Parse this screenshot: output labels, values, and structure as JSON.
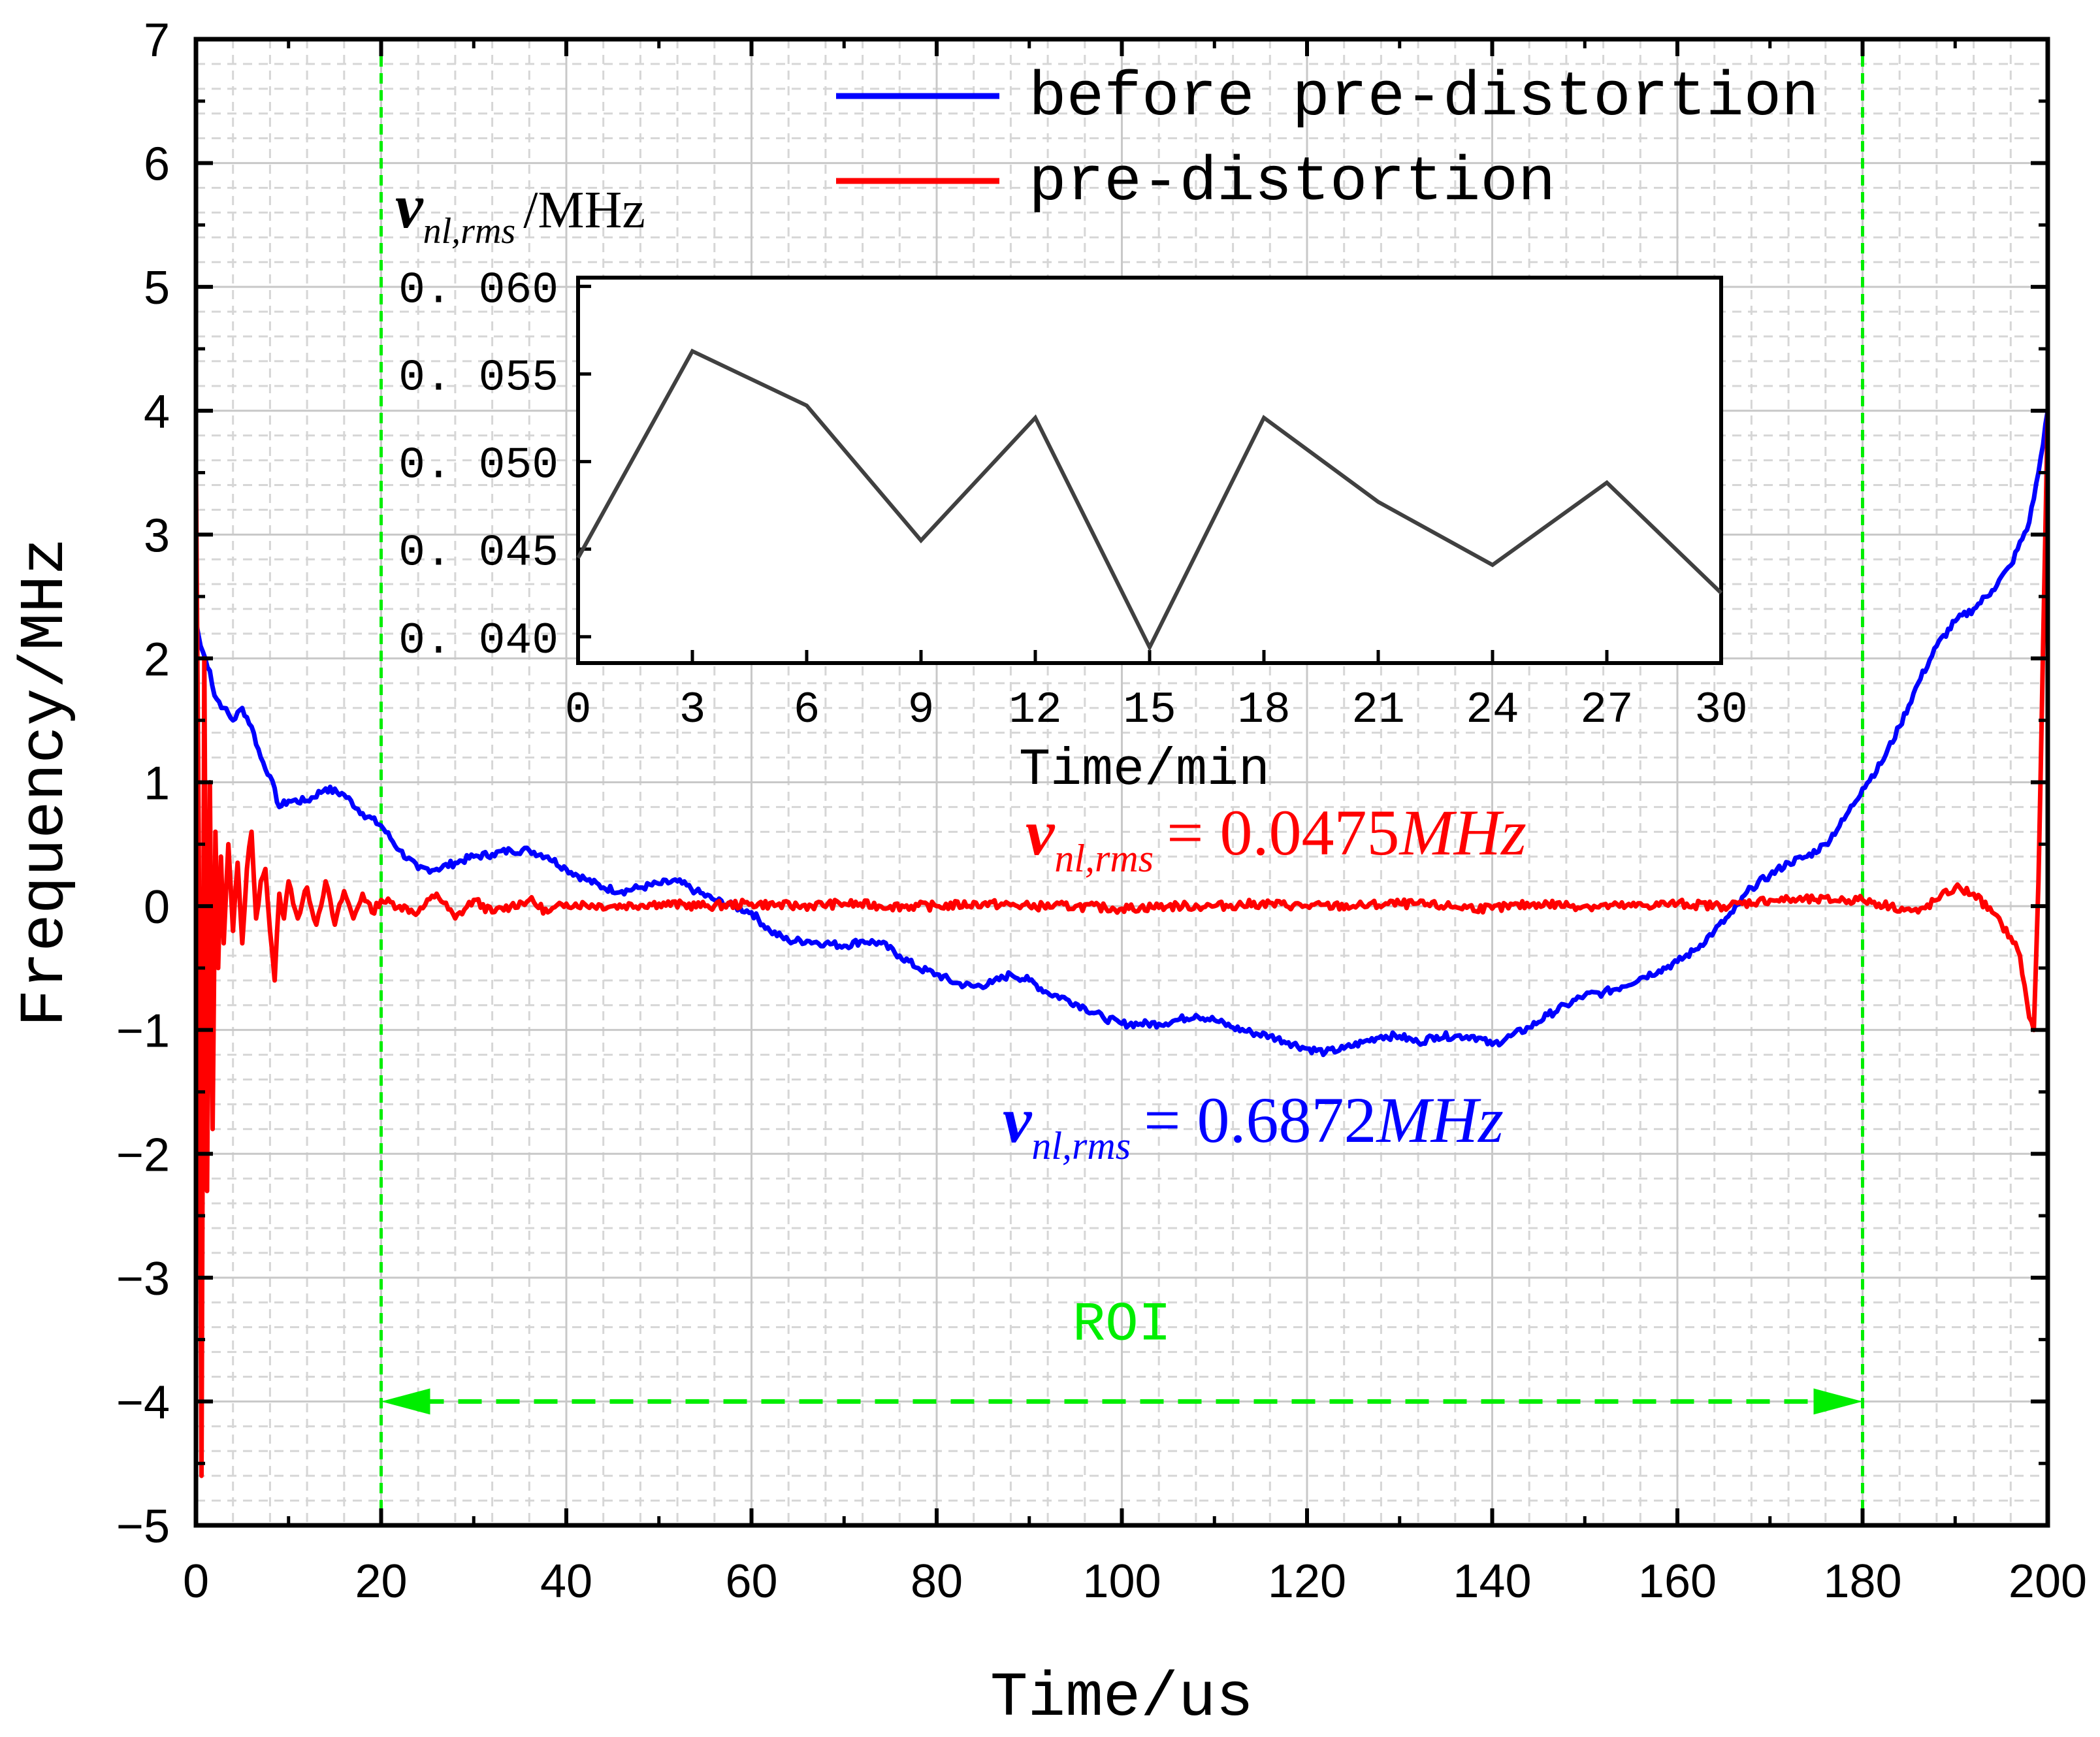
{
  "chart_data": [
    {
      "type": "line",
      "title": "",
      "xlabel": "Time/us",
      "ylabel": "Frequency/MHz",
      "xlim": [
        0,
        200
      ],
      "ylim": [
        -5,
        7
      ],
      "xticks": [
        "0",
        "20",
        "40",
        "60",
        "80",
        "100",
        "120",
        "140",
        "160",
        "180",
        "200"
      ],
      "yticks": [
        "−5",
        "−4",
        "−3",
        "−2",
        "−1",
        "0",
        "1",
        "2",
        "3",
        "4",
        "5",
        "6",
        "7"
      ],
      "grid": true,
      "legend_position": "top-right",
      "series": [
        {
          "name": "before pre-distortion",
          "color": "#0000ff",
          "x": [
            0,
            0.5,
            1,
            1.5,
            2,
            3,
            4,
            5,
            6,
            7,
            8,
            9,
            10,
            12,
            14,
            16,
            18,
            20,
            22,
            24,
            26,
            28,
            30,
            32,
            34,
            36,
            38,
            40,
            42,
            44,
            46,
            48,
            50,
            52,
            54,
            56,
            58,
            60,
            62,
            64,
            66,
            68,
            70,
            72,
            74,
            76,
            78,
            80,
            82,
            84,
            86,
            88,
            90,
            92,
            94,
            96,
            98,
            100,
            102,
            104,
            106,
            108,
            110,
            112,
            114,
            116,
            118,
            120,
            122,
            124,
            126,
            128,
            130,
            132,
            134,
            136,
            138,
            140,
            142,
            144,
            146,
            148,
            150,
            152,
            154,
            156,
            158,
            160,
            162,
            164,
            166,
            168,
            170,
            172,
            174,
            176,
            178,
            180,
            182,
            184,
            186,
            188,
            190,
            192,
            194,
            196,
            198,
            199,
            200
          ],
          "y": [
            2.3,
            2.1,
            2.0,
            1.9,
            1.7,
            1.6,
            1.5,
            1.6,
            1.45,
            1.2,
            1.05,
            0.8,
            0.85,
            0.85,
            0.95,
            0.9,
            0.75,
            0.65,
            0.45,
            0.3,
            0.3,
            0.35,
            0.4,
            0.42,
            0.45,
            0.45,
            0.4,
            0.3,
            0.22,
            0.15,
            0.12,
            0.15,
            0.18,
            0.2,
            0.12,
            0.05,
            0.0,
            -0.05,
            -0.2,
            -0.28,
            -0.28,
            -0.3,
            -0.32,
            -0.28,
            -0.3,
            -0.4,
            -0.5,
            -0.55,
            -0.62,
            -0.65,
            -0.62,
            -0.55,
            -0.6,
            -0.7,
            -0.75,
            -0.82,
            -0.9,
            -0.95,
            -0.95,
            -0.95,
            -0.92,
            -0.88,
            -0.92,
            -0.98,
            -1.02,
            -1.05,
            -1.1,
            -1.15,
            -1.18,
            -1.15,
            -1.1,
            -1.05,
            -1.05,
            -1.1,
            -1.05,
            -1.05,
            -1.05,
            -1.12,
            -1.05,
            -0.98,
            -0.88,
            -0.8,
            -0.72,
            -0.7,
            -0.65,
            -0.58,
            -0.52,
            -0.45,
            -0.35,
            -0.2,
            -0.05,
            0.15,
            0.25,
            0.35,
            0.4,
            0.5,
            0.7,
            0.95,
            1.15,
            1.45,
            1.8,
            2.1,
            2.3,
            2.4,
            2.55,
            2.75,
            3.1,
            3.5,
            4.0
          ]
        },
        {
          "name": "pre-distortion",
          "color": "#ff0000",
          "x": [
            0,
            0.3,
            0.6,
            0.9,
            1.2,
            1.5,
            1.8,
            2.1,
            2.4,
            2.7,
            3,
            3.5,
            4,
            4.5,
            5,
            5.5,
            6,
            6.5,
            7,
            7.5,
            8,
            8.5,
            9,
            9.5,
            10,
            11,
            12,
            13,
            14,
            15,
            16,
            17,
            18,
            19,
            20,
            22,
            24,
            26,
            28,
            30,
            32,
            34,
            36,
            38,
            40,
            45,
            50,
            55,
            60,
            65,
            70,
            75,
            80,
            85,
            90,
            95,
            100,
            105,
            110,
            115,
            120,
            125,
            130,
            135,
            140,
            145,
            150,
            155,
            160,
            165,
            170,
            175,
            180,
            183,
            186,
            188,
            190,
            192,
            194,
            196,
            197,
            198,
            198.5,
            199,
            200
          ],
          "y": [
            3.5,
            0.5,
            -4.6,
            2.0,
            -2.3,
            1.0,
            -1.8,
            0.6,
            -0.5,
            0.4,
            -0.3,
            0.5,
            -0.2,
            0.35,
            -0.3,
            0.3,
            0.6,
            -0.1,
            0.2,
            0.3,
            -0.2,
            -0.6,
            0.1,
            -0.1,
            0.2,
            -0.1,
            0.15,
            -0.15,
            0.2,
            -0.15,
            0.12,
            -0.1,
            0.1,
            -0.05,
            0.05,
            0.0,
            -0.05,
            0.1,
            -0.1,
            0.05,
            -0.05,
            0.0,
            0.05,
            -0.05,
            0.02,
            0.0,
            0.02,
            0.0,
            0.02,
            0.0,
            0.02,
            0.0,
            0.0,
            0.02,
            0.0,
            0.0,
            -0.02,
            0.0,
            0.0,
            0.02,
            0.0,
            0.0,
            0.02,
            0.0,
            -0.02,
            0.02,
            0.0,
            0.0,
            0.02,
            0.0,
            0.05,
            0.05,
            0.05,
            0.0,
            -0.05,
            0.05,
            0.15,
            0.1,
            -0.05,
            -0.25,
            -0.4,
            -0.9,
            -1.0,
            0.2,
            4.0
          ]
        }
      ],
      "annotations": [
        {
          "id": "red",
          "label": "v",
          "sub": "nl,rms",
          "value": "= 0.0475",
          "unit": "MHz",
          "color": "#ff0000"
        },
        {
          "id": "blue",
          "label": "v",
          "sub": "nl,rms",
          "value": "= 0.6872",
          "unit": "MHz",
          "color": "#0000ff"
        },
        {
          "id": "roi",
          "label": "ROI",
          "color": "#00ee00",
          "x_start": 20,
          "x_end": 180
        }
      ]
    },
    {
      "type": "line",
      "title": "",
      "xlabel": "Time/min",
      "ylabel_symbol": "v",
      "ylabel_sub": "nl,rms",
      "ylabel_unit": "/MHz",
      "xlim": [
        0,
        30
      ],
      "ylim": [
        0.0385,
        0.0605
      ],
      "xticks": [
        "0",
        "3",
        "6",
        "9",
        "12",
        "15",
        "18",
        "21",
        "24",
        "27",
        "30"
      ],
      "yticks": [
        "0.040",
        "0.045",
        "0.050",
        "0.055",
        "0.060"
      ],
      "series": [
        {
          "name": "v_nl,rms",
          "color": "#404040",
          "x": [
            0,
            3,
            6,
            9,
            12,
            15,
            18,
            21,
            24,
            27,
            30
          ],
          "y": [
            0.0445,
            0.0563,
            0.0532,
            0.0455,
            0.0525,
            0.0394,
            0.0525,
            0.0477,
            0.0441,
            0.0488,
            0.0425
          ]
        }
      ]
    }
  ]
}
